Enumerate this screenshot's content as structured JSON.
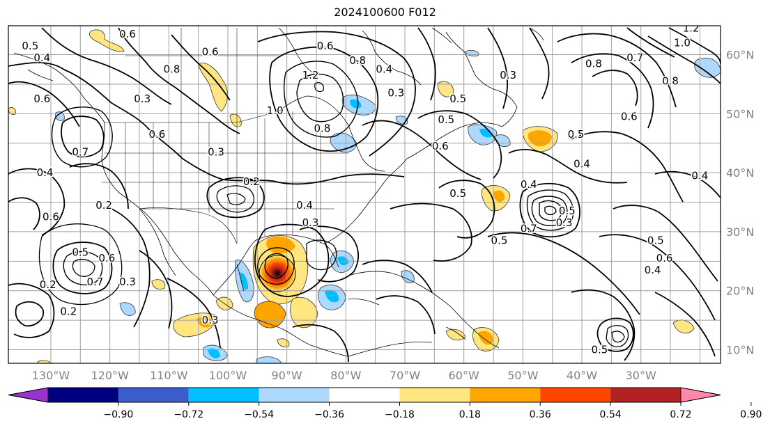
{
  "title": "2024100600 F012",
  "lat_labels": [
    {
      "value": 60,
      "text": "60°N"
    },
    {
      "value": 50,
      "text": "50°N"
    },
    {
      "value": 40,
      "text": "40°N"
    },
    {
      "value": 30,
      "text": "30°N"
    },
    {
      "value": 20,
      "text": "20°N"
    },
    {
      "value": 10,
      "text": "10°N"
    }
  ],
  "lon_labels": [
    {
      "value": -130,
      "text": "130°W"
    },
    {
      "value": -120,
      "text": "120°W"
    },
    {
      "value": -110,
      "text": "110°W"
    },
    {
      "value": -100,
      "text": "100°W"
    },
    {
      "value": -90,
      "text": "90°W"
    },
    {
      "value": -80,
      "text": "80°W"
    },
    {
      "value": -70,
      "text": "70°W"
    },
    {
      "value": -60,
      "text": "60°W"
    },
    {
      "value": -50,
      "text": "50°W"
    },
    {
      "value": -40,
      "text": "40°W"
    },
    {
      "value": -30,
      "text": "30°W"
    }
  ],
  "colorbar": {
    "colors": [
      "#9933cc",
      "#000080",
      "#3a5fcd",
      "#00bfff",
      "#add8ff",
      "#ffffff",
      "#ffe680",
      "#ffa500",
      "#ff4500",
      "#b22222",
      "#ff88aa"
    ],
    "ticks": [
      "−0.90",
      "−0.72",
      "−0.54",
      "−0.36",
      "−0.18",
      "0.18",
      "0.36",
      "0.54",
      "0.72",
      "0.90"
    ]
  },
  "contour_labels": [
    {
      "text": "0.5",
      "lon": -133.5,
      "lat": 61.5
    },
    {
      "text": "0.4",
      "lon": -131.5,
      "lat": 59.5
    },
    {
      "text": "0.6",
      "lon": -131.5,
      "lat": 52.5
    },
    {
      "text": "0.6",
      "lon": -117,
      "lat": 63.5
    },
    {
      "text": "0.8",
      "lon": -109.5,
      "lat": 57.5
    },
    {
      "text": "0.3",
      "lon": -114.5,
      "lat": 52.5
    },
    {
      "text": "0.6",
      "lon": -112,
      "lat": 46.5
    },
    {
      "text": "0.7",
      "lon": -125,
      "lat": 43.5
    },
    {
      "text": "0.4",
      "lon": -131,
      "lat": 40
    },
    {
      "text": "0.6",
      "lon": -130,
      "lat": 32.5
    },
    {
      "text": "0.2",
      "lon": -121,
      "lat": 34.5
    },
    {
      "text": "0.3",
      "lon": -102,
      "lat": 43.5
    },
    {
      "text": "0.2",
      "lon": -96,
      "lat": 38.5
    },
    {
      "text": "0.6",
      "lon": -103,
      "lat": 60.5
    },
    {
      "text": "1.0",
      "lon": -92,
      "lat": 50.5
    },
    {
      "text": "1.2",
      "lon": -86,
      "lat": 56.5
    },
    {
      "text": "0.6",
      "lon": -83.5,
      "lat": 61.5
    },
    {
      "text": "0.8",
      "lon": -78,
      "lat": 59
    },
    {
      "text": "0.4",
      "lon": -73.5,
      "lat": 57.5
    },
    {
      "text": "0.3",
      "lon": -71.5,
      "lat": 53.5
    },
    {
      "text": "0.5",
      "lon": -61,
      "lat": 52.5
    },
    {
      "text": "0.8",
      "lon": -84,
      "lat": 47.5
    },
    {
      "text": "0.6",
      "lon": -64,
      "lat": 44.5
    },
    {
      "text": "0.5",
      "lon": -63,
      "lat": 49
    },
    {
      "text": "0.4",
      "lon": -87,
      "lat": 34.5
    },
    {
      "text": "0.3",
      "lon": -86,
      "lat": 31.5
    },
    {
      "text": "0.5",
      "lon": -61,
      "lat": 36.5
    },
    {
      "text": "0.5",
      "lon": -54,
      "lat": 28.5
    },
    {
      "text": "0.4",
      "lon": -49,
      "lat": 38
    },
    {
      "text": "0.3",
      "lon": -43,
      "lat": 31.5
    },
    {
      "text": "0.7",
      "lon": -49,
      "lat": 30.5
    },
    {
      "text": "0.5",
      "lon": -42.5,
      "lat": 33.5
    },
    {
      "text": "0.5",
      "lon": -41,
      "lat": 46.5
    },
    {
      "text": "0.4",
      "lon": -40,
      "lat": 41.5
    },
    {
      "text": "0.4",
      "lon": -20,
      "lat": 39.5
    },
    {
      "text": "0.6",
      "lon": -32,
      "lat": 49.5
    },
    {
      "text": "0.8",
      "lon": -38,
      "lat": 58.5
    },
    {
      "text": "0.7",
      "lon": -31,
      "lat": 59.5
    },
    {
      "text": "0.8",
      "lon": -25,
      "lat": 55.5
    },
    {
      "text": "1.0",
      "lon": -23,
      "lat": 62
    },
    {
      "text": "1.2",
      "lon": -21.5,
      "lat": 64.5
    },
    {
      "text": "0.3",
      "lon": -52.5,
      "lat": 56.5
    },
    {
      "text": "0.5",
      "lon": -125,
      "lat": 26.5
    },
    {
      "text": "0.6",
      "lon": -120.5,
      "lat": 25.5
    },
    {
      "text": "0.7",
      "lon": -122.5,
      "lat": 21.5
    },
    {
      "text": "0.3",
      "lon": -117,
      "lat": 21.5
    },
    {
      "text": "0.2",
      "lon": -130.5,
      "lat": 21
    },
    {
      "text": "0.2",
      "lon": -127,
      "lat": 16.5
    },
    {
      "text": "0.3",
      "lon": -103,
      "lat": 15
    },
    {
      "text": "0.5",
      "lon": -27.5,
      "lat": 28.5
    },
    {
      "text": "0.6",
      "lon": -26,
      "lat": 25.5
    },
    {
      "text": "0.4",
      "lon": -28,
      "lat": 23.5
    },
    {
      "text": "0.5",
      "lon": -37,
      "lat": 10
    }
  ]
}
